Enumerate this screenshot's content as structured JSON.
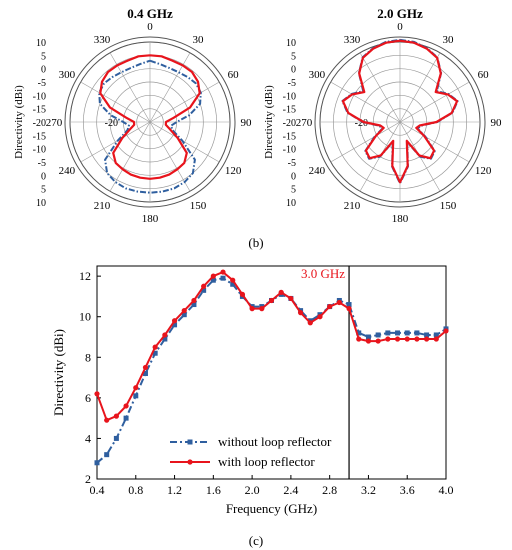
{
  "colors": {
    "without": "#2f5f9f",
    "with": "#e8141c",
    "grid": "#9a9a9a",
    "axis": "#000000"
  },
  "captions": {
    "b": "(b)",
    "c": "(c)"
  },
  "chart_data": [
    {
      "type": "polar",
      "title": "0.4 GHz",
      "radial_label": "Directivity (dBi)",
      "radial_range": [
        -20,
        10
      ],
      "radial_ticks": [
        "10",
        "5",
        "0",
        "-5",
        "-10",
        "-15",
        "-20",
        "-15",
        "-10",
        "-5",
        "0",
        "5",
        "10"
      ],
      "center_tick": "-20",
      "angle_labels": [
        "0",
        "30",
        "60",
        "90",
        "120",
        "150",
        "180",
        "210",
        "240",
        "270",
        "300",
        "330"
      ],
      "series": [
        {
          "name": "without loop reflector",
          "values": [
            3,
            2,
            1.5,
            1.5,
            2,
            2.5,
            2,
            0,
            -5,
            -10,
            -12,
            -11,
            -6,
            2,
            5,
            6,
            6.5,
            6.5,
            6.5,
            6.5,
            6.5,
            6,
            5,
            2,
            -6,
            -11,
            -12,
            -10,
            -5,
            0,
            2,
            2.5,
            2,
            1.5,
            1.5,
            2,
            3
          ]
        },
        {
          "name": "with loop reflector",
          "values": [
            5,
            5,
            4.5,
            4.5,
            4.5,
            3.5,
            1.5,
            -4,
            -11,
            -14,
            -14,
            -12,
            -8,
            -2,
            0,
            0.5,
            1,
            1.2,
            1.3,
            1.2,
            1,
            0.5,
            0,
            -2,
            -8,
            -12,
            -14,
            -14,
            -11,
            -4,
            1.5,
            3.5,
            4.5,
            4.5,
            4.5,
            5,
            5
          ]
        }
      ]
    },
    {
      "type": "polar",
      "title": "2.0 GHz",
      "radial_label": "Directivity (dBi)",
      "radial_range": [
        -20,
        10
      ],
      "radial_ticks": [
        "10",
        "5",
        "0",
        "-5",
        "-10",
        "-15",
        "-20",
        "-15",
        "-10",
        "-5",
        "0",
        "5",
        "10"
      ],
      "center_tick": "-20",
      "angle_labels": [
        "0",
        "30",
        "60",
        "90",
        "120",
        "150",
        "180",
        "210",
        "240",
        "270",
        "300",
        "330"
      ],
      "series": [
        {
          "name": "without loop reflector",
          "values": [
            10.8,
            10.5,
            9.5,
            8,
            4,
            -2,
            1,
            3,
            0,
            -6,
            -12,
            -13,
            -9,
            -3,
            -2,
            -5,
            -12,
            -3,
            3,
            -3,
            -12,
            -5,
            -2,
            -3,
            -9,
            -13,
            -12,
            -6,
            0,
            3,
            1,
            -2,
            4,
            8,
            9.5,
            10.5,
            10.8
          ]
        },
        {
          "name": "with loop reflector",
          "values": [
            10.5,
            10.2,
            9.3,
            7.8,
            3.8,
            -2.5,
            0.7,
            2.8,
            -0.3,
            -6.3,
            -12.5,
            -13.5,
            -9.5,
            -3.3,
            -2.3,
            -5.5,
            -12.5,
            -3.3,
            2.6,
            -3.3,
            -12.5,
            -5.5,
            -2.3,
            -3.3,
            -9.5,
            -13.5,
            -12.5,
            -6.3,
            -0.3,
            2.8,
            0.7,
            -2.5,
            3.8,
            7.8,
            9.3,
            10.2,
            10.5
          ]
        }
      ]
    },
    {
      "type": "line",
      "xlabel": "Frequency (GHz)",
      "ylabel": "Directivity (dBi)",
      "xlim": [
        0.4,
        4.0
      ],
      "ylim": [
        2,
        12.5
      ],
      "xticks": [
        "0.4",
        "0.8",
        "1.2",
        "1.6",
        "2.0",
        "2.4",
        "2.8",
        "3.2",
        "3.6",
        "4.0"
      ],
      "yticks": [
        "2",
        "4",
        "6",
        "8",
        "10",
        "12"
      ],
      "vline": {
        "x": 3.0,
        "label": "3.0 GHz"
      },
      "legend_position": "lower-left",
      "x": [
        0.4,
        0.5,
        0.6,
        0.7,
        0.8,
        0.9,
        1.0,
        1.1,
        1.2,
        1.3,
        1.4,
        1.5,
        1.6,
        1.7,
        1.8,
        1.9,
        2.0,
        2.1,
        2.2,
        2.3,
        2.4,
        2.5,
        2.6,
        2.7,
        2.8,
        2.9,
        3.0,
        3.1,
        3.2,
        3.3,
        3.4,
        3.5,
        3.6,
        3.7,
        3.8,
        3.9,
        4.0
      ],
      "series": [
        {
          "name": "without loop reflector",
          "values": [
            2.8,
            3.2,
            4.0,
            5.0,
            6.1,
            7.2,
            8.2,
            8.9,
            9.6,
            10.1,
            10.6,
            11.3,
            11.8,
            11.9,
            11.6,
            11.0,
            10.5,
            10.5,
            10.8,
            11.1,
            10.9,
            10.3,
            9.8,
            10.1,
            10.5,
            10.8,
            10.6,
            9.2,
            9.0,
            9.1,
            9.2,
            9.2,
            9.2,
            9.2,
            9.1,
            9.1,
            9.4
          ]
        },
        {
          "name": "with loop reflector",
          "values": [
            6.2,
            4.9,
            5.1,
            5.6,
            6.5,
            7.5,
            8.5,
            9.1,
            9.8,
            10.3,
            10.8,
            11.5,
            12.0,
            12.2,
            11.8,
            11.1,
            10.4,
            10.4,
            10.8,
            11.2,
            10.9,
            10.2,
            9.7,
            10.0,
            10.5,
            10.7,
            10.4,
            8.9,
            8.8,
            8.8,
            8.9,
            8.9,
            8.9,
            8.9,
            8.9,
            8.9,
            9.3
          ]
        }
      ]
    }
  ]
}
